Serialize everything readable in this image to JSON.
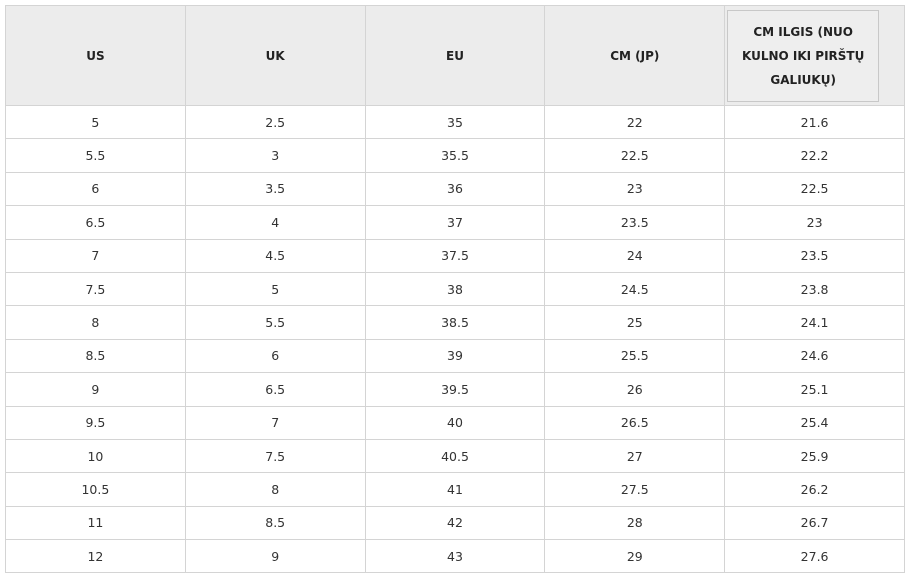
{
  "table": {
    "header": [
      "US",
      "UK",
      "EU",
      "CM (JP)",
      "CM ILGIS (NUO KULNO IKI PIRŠTŲ GALIUKŲ)"
    ],
    "rows": [
      [
        "5",
        "2.5",
        "35",
        "22",
        "21.6"
      ],
      [
        "5.5",
        "3",
        "35.5",
        "22.5",
        "22.2"
      ],
      [
        "6",
        "3.5",
        "36",
        "23",
        "22.5"
      ],
      [
        "6.5",
        "4",
        "37",
        "23.5",
        "23"
      ],
      [
        "7",
        "4.5",
        "37.5",
        "24",
        "23.5"
      ],
      [
        "7.5",
        "5",
        "38",
        "24.5",
        "23.8"
      ],
      [
        "8",
        "5.5",
        "38.5",
        "25",
        "24.1"
      ],
      [
        "8.5",
        "6",
        "39",
        "25.5",
        "24.6"
      ],
      [
        "9",
        "6.5",
        "39.5",
        "26",
        "25.1"
      ],
      [
        "9.5",
        "7",
        "40",
        "26.5",
        "25.4"
      ],
      [
        "10",
        "7.5",
        "40.5",
        "27",
        "25.9"
      ],
      [
        "10.5",
        "8",
        "41",
        "27.5",
        "26.2"
      ],
      [
        "11",
        "8.5",
        "42",
        "28",
        "26.7"
      ],
      [
        "12",
        "9",
        "43",
        "29",
        "27.6"
      ]
    ]
  }
}
